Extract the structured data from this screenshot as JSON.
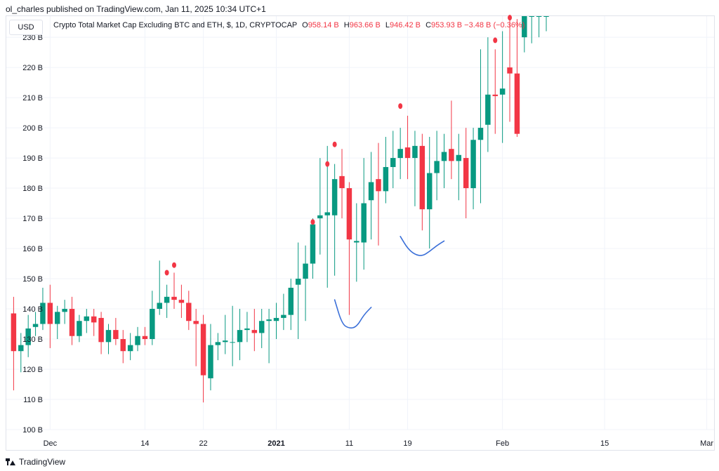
{
  "header": {
    "publisher": "ol_charles published on TradingView.com, Jan 11, 2025 10:34 UTC+1"
  },
  "currency_button": "USD",
  "legend": {
    "title": "Crypto Total Market Cap Excluding BTC and ETH, $, 1D, CRYPTOCAP",
    "o_label": "O",
    "o_value": "958.14 B",
    "h_label": "H",
    "h_value": "963.66 B",
    "l_label": "L",
    "l_value": "946.42 B",
    "c_label": "C",
    "c_value": "953.93 B",
    "change": "−3.48 B (−0.36%)"
  },
  "footer": {
    "brand": "TradingView"
  },
  "colors": {
    "up": "#089981",
    "down": "#f23645",
    "annotation": "#3a6fd8",
    "marker": "#f23645",
    "grid": "#f0f3fa"
  },
  "chart_data": {
    "type": "candlestick",
    "ylim": [
      100,
      237
    ],
    "y_ticks": [
      100,
      110,
      120,
      130,
      140,
      150,
      160,
      170,
      180,
      190,
      200,
      210,
      220,
      230
    ],
    "y_unit": "B",
    "x_ticks": [
      {
        "label": "Dec",
        "date": "2020-12-01",
        "bold": false
      },
      {
        "label": "14",
        "date": "2020-12-14",
        "bold": false
      },
      {
        "label": "22",
        "date": "2020-12-22",
        "bold": false
      },
      {
        "label": "2021",
        "date": "2021-01-01",
        "bold": true
      },
      {
        "label": "11",
        "date": "2021-01-11",
        "bold": false
      },
      {
        "label": "19",
        "date": "2021-01-19",
        "bold": false
      },
      {
        "label": "Feb",
        "date": "2021-02-01",
        "bold": false
      },
      {
        "label": "15",
        "date": "2021-02-15",
        "bold": false
      },
      {
        "label": "Mar",
        "date": "2021-03-01",
        "bold": false
      }
    ],
    "x_range": [
      "2020-11-25",
      "2021-03-02"
    ],
    "candles": [
      {
        "date": "2020-11-26",
        "o": 138.5,
        "h": 144,
        "l": 113,
        "c": 126
      },
      {
        "date": "2020-11-27",
        "o": 126,
        "h": 132,
        "l": 119,
        "c": 128
      },
      {
        "date": "2020-11-28",
        "o": 128,
        "h": 138,
        "l": 124,
        "c": 133.5
      },
      {
        "date": "2020-11-29",
        "o": 134,
        "h": 139,
        "l": 131,
        "c": 135
      },
      {
        "date": "2020-11-30",
        "o": 135,
        "h": 147,
        "l": 133,
        "c": 142
      },
      {
        "date": "2020-12-01",
        "o": 142,
        "h": 148,
        "l": 127,
        "c": 135
      },
      {
        "date": "2020-12-02",
        "o": 135,
        "h": 141,
        "l": 130,
        "c": 139
      },
      {
        "date": "2020-12-03",
        "o": 139,
        "h": 143,
        "l": 135,
        "c": 140
      },
      {
        "date": "2020-12-04",
        "o": 140,
        "h": 144,
        "l": 128,
        "c": 131
      },
      {
        "date": "2020-12-05",
        "o": 131,
        "h": 138,
        "l": 129,
        "c": 136
      },
      {
        "date": "2020-12-06",
        "o": 136,
        "h": 140,
        "l": 132,
        "c": 137.5
      },
      {
        "date": "2020-12-07",
        "o": 137.5,
        "h": 140,
        "l": 131,
        "c": 135.5
      },
      {
        "date": "2020-12-08",
        "o": 137,
        "h": 139,
        "l": 125,
        "c": 129
      },
      {
        "date": "2020-12-09",
        "o": 129,
        "h": 135,
        "l": 125,
        "c": 133
      },
      {
        "date": "2020-12-10",
        "o": 133,
        "h": 137,
        "l": 128,
        "c": 130
      },
      {
        "date": "2020-12-11",
        "o": 130,
        "h": 133,
        "l": 122,
        "c": 126
      },
      {
        "date": "2020-12-12",
        "o": 126,
        "h": 132,
        "l": 123,
        "c": 128
      },
      {
        "date": "2020-12-13",
        "o": 128,
        "h": 134,
        "l": 126,
        "c": 131
      },
      {
        "date": "2020-12-14",
        "o": 131,
        "h": 134,
        "l": 128,
        "c": 130
      },
      {
        "date": "2020-12-15",
        "o": 130,
        "h": 146,
        "l": 128,
        "c": 140
      },
      {
        "date": "2020-12-16",
        "o": 140,
        "h": 156,
        "l": 138,
        "c": 142
      },
      {
        "date": "2020-12-17",
        "o": 142,
        "h": 148,
        "l": 137,
        "c": 144
      },
      {
        "date": "2020-12-18",
        "o": 144,
        "h": 152,
        "l": 140,
        "c": 143
      },
      {
        "date": "2020-12-19",
        "o": 143,
        "h": 148,
        "l": 137,
        "c": 142
      },
      {
        "date": "2020-12-20",
        "o": 142,
        "h": 146,
        "l": 133,
        "c": 136
      },
      {
        "date": "2020-12-21",
        "o": 136,
        "h": 140,
        "l": 121,
        "c": 135
      },
      {
        "date": "2020-12-22",
        "o": 135,
        "h": 138,
        "l": 109,
        "c": 118
      },
      {
        "date": "2020-12-23",
        "o": 117,
        "h": 135,
        "l": 113,
        "c": 128
      },
      {
        "date": "2020-12-24",
        "o": 128,
        "h": 132,
        "l": 123,
        "c": 129
      },
      {
        "date": "2020-12-25",
        "o": 129,
        "h": 138,
        "l": 125,
        "c": 129.5
      },
      {
        "date": "2020-12-26",
        "o": 129,
        "h": 141,
        "l": 121,
        "c": 129
      },
      {
        "date": "2020-12-27",
        "o": 129,
        "h": 140,
        "l": 123,
        "c": 133
      },
      {
        "date": "2020-12-28",
        "o": 133,
        "h": 139,
        "l": 129,
        "c": 133.5
      },
      {
        "date": "2020-12-29",
        "o": 133,
        "h": 140,
        "l": 126,
        "c": 132
      },
      {
        "date": "2020-12-30",
        "o": 132,
        "h": 140,
        "l": 127,
        "c": 136
      },
      {
        "date": "2020-12-31",
        "o": 136,
        "h": 140,
        "l": 122,
        "c": 136.5
      },
      {
        "date": "2021-01-01",
        "o": 136,
        "h": 142,
        "l": 130,
        "c": 137
      },
      {
        "date": "2021-01-02",
        "o": 137,
        "h": 145,
        "l": 133,
        "c": 138
      },
      {
        "date": "2021-01-03",
        "o": 138,
        "h": 150,
        "l": 133,
        "c": 147
      },
      {
        "date": "2021-01-04",
        "o": 148,
        "h": 162,
        "l": 130,
        "c": 150
      },
      {
        "date": "2021-01-05",
        "o": 150,
        "h": 161,
        "l": 136,
        "c": 155
      },
      {
        "date": "2021-01-06",
        "o": 155,
        "h": 170,
        "l": 150,
        "c": 168
      },
      {
        "date": "2021-01-07",
        "o": 170,
        "h": 190,
        "l": 158,
        "c": 171
      },
      {
        "date": "2021-01-08",
        "o": 171,
        "h": 194,
        "l": 147,
        "c": 172
      },
      {
        "date": "2021-01-09",
        "o": 171,
        "h": 188,
        "l": 151,
        "c": 183
      },
      {
        "date": "2021-01-10",
        "o": 184,
        "h": 193,
        "l": 170,
        "c": 180
      },
      {
        "date": "2021-01-11",
        "o": 180,
        "h": 182,
        "l": 138,
        "c": 163
      },
      {
        "date": "2021-01-12",
        "o": 162,
        "h": 175,
        "l": 149,
        "c": 162.5
      },
      {
        "date": "2021-01-13",
        "o": 162,
        "h": 190,
        "l": 153,
        "c": 175
      },
      {
        "date": "2021-01-14",
        "o": 176,
        "h": 192,
        "l": 163,
        "c": 182
      },
      {
        "date": "2021-01-15",
        "o": 183,
        "h": 195,
        "l": 161,
        "c": 179
      },
      {
        "date": "2021-01-16",
        "o": 179,
        "h": 197,
        "l": 175,
        "c": 187
      },
      {
        "date": "2021-01-17",
        "o": 187,
        "h": 199,
        "l": 180,
        "c": 190
      },
      {
        "date": "2021-01-18",
        "o": 190,
        "h": 200,
        "l": 183,
        "c": 193
      },
      {
        "date": "2021-01-19",
        "o": 193.5,
        "h": 204,
        "l": 183,
        "c": 190
      },
      {
        "date": "2021-01-20",
        "o": 190,
        "h": 199,
        "l": 174,
        "c": 194
      },
      {
        "date": "2021-01-21",
        "o": 194,
        "h": 198,
        "l": 166,
        "c": 173
      },
      {
        "date": "2021-01-22",
        "o": 173,
        "h": 197,
        "l": 160,
        "c": 185
      },
      {
        "date": "2021-01-23",
        "o": 185,
        "h": 199,
        "l": 176,
        "c": 189
      },
      {
        "date": "2021-01-24",
        "o": 189,
        "h": 198,
        "l": 180,
        "c": 192
      },
      {
        "date": "2021-01-25",
        "o": 193,
        "h": 209,
        "l": 183,
        "c": 189
      },
      {
        "date": "2021-01-26",
        "o": 189,
        "h": 198,
        "l": 176,
        "c": 191
      },
      {
        "date": "2021-01-27",
        "o": 190,
        "h": 200,
        "l": 170,
        "c": 180
      },
      {
        "date": "2021-01-28",
        "o": 180,
        "h": 200,
        "l": 173,
        "c": 196
      },
      {
        "date": "2021-01-29",
        "o": 196,
        "h": 226,
        "l": 175,
        "c": 200
      },
      {
        "date": "2021-01-30",
        "o": 201,
        "h": 230,
        "l": 192,
        "c": 211
      },
      {
        "date": "2021-01-31",
        "o": 211,
        "h": 226,
        "l": 198,
        "c": 210.5
      },
      {
        "date": "2021-02-01",
        "o": 211,
        "h": 232,
        "l": 195,
        "c": 213
      },
      {
        "date": "2021-02-02",
        "o": 220,
        "h": 243,
        "l": 202,
        "c": 218
      },
      {
        "date": "2021-02-03",
        "o": 218,
        "h": 236,
        "l": 197,
        "c": 198
      },
      {
        "date": "2021-02-04",
        "o": 230,
        "h": 245,
        "l": 225,
        "c": 239
      },
      {
        "date": "2021-02-05",
        "o": 237,
        "h": 248,
        "l": 228,
        "c": 246
      },
      {
        "date": "2021-02-06",
        "o": 240,
        "h": 250,
        "l": 230,
        "c": 247
      },
      {
        "date": "2021-02-07",
        "o": 240,
        "h": 250,
        "l": 232,
        "c": 246
      }
    ],
    "markers": [
      {
        "date": "2020-12-17",
        "value": 152
      },
      {
        "date": "2020-12-18",
        "value": 154.5
      },
      {
        "date": "2021-01-06",
        "value": 168.8
      },
      {
        "date": "2021-01-08",
        "value": 188
      },
      {
        "date": "2021-01-09",
        "value": 194.5
      },
      {
        "date": "2021-01-18",
        "value": 207.2
      },
      {
        "date": "2021-01-31",
        "value": 229
      },
      {
        "date": "2021-02-02",
        "value": 236.5
      }
    ],
    "annotations": [
      {
        "points": [
          [
            "2021-01-09",
            143
          ],
          [
            "2021-01-10",
            135
          ],
          [
            "2021-01-11",
            133.5
          ],
          [
            "2021-01-12",
            134
          ],
          [
            "2021-01-13",
            138
          ],
          [
            "2021-01-14",
            140.5
          ]
        ]
      },
      {
        "points": [
          [
            "2021-01-18",
            164
          ],
          [
            "2021-01-19",
            160
          ],
          [
            "2021-01-20",
            158
          ],
          [
            "2021-01-21",
            157.5
          ],
          [
            "2021-01-22",
            159
          ],
          [
            "2021-01-23",
            161
          ],
          [
            "2021-01-24",
            162.5
          ]
        ]
      }
    ]
  }
}
